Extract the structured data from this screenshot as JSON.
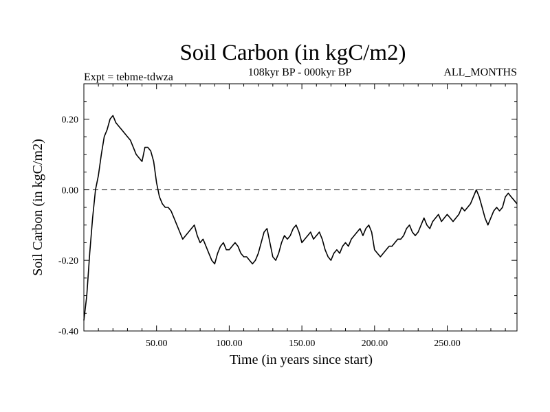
{
  "chart_data": {
    "type": "line",
    "title": "Soil Carbon (in kgC/m2)",
    "experiment_label": "Expt = tebme-tdwza",
    "period_label": "108kyr BP - 000kyr BP",
    "season_label": "ALL_MONTHS",
    "xlabel": "Time (in years since start)",
    "ylabel": "Soil Carbon (in kgC/m2)",
    "xlim": [
      0,
      298
    ],
    "ylim": [
      -0.4,
      0.3
    ],
    "x_ticks": [
      50,
      100,
      150,
      200,
      250
    ],
    "x_tick_labels": [
      "50.00",
      "100.00",
      "150.00",
      "200.00",
      "250.00"
    ],
    "y_ticks": [
      0.2,
      0.0,
      -0.2,
      -0.4
    ],
    "y_tick_labels": [
      "0.20",
      "0.00",
      "-0.20",
      "-0.40"
    ],
    "reference_line": 0.0,
    "series": [
      {
        "name": "Soil Carbon",
        "x": [
          0,
          2,
          4,
          6,
          8,
          10,
          12,
          14,
          16,
          18,
          20,
          22,
          24,
          26,
          28,
          30,
          32,
          34,
          36,
          38,
          40,
          42,
          44,
          46,
          48,
          50,
          52,
          54,
          56,
          58,
          60,
          62,
          64,
          66,
          68,
          70,
          72,
          74,
          76,
          78,
          80,
          82,
          84,
          86,
          88,
          90,
          92,
          94,
          96,
          98,
          100,
          102,
          104,
          106,
          108,
          110,
          112,
          114,
          116,
          118,
          120,
          122,
          124,
          126,
          128,
          130,
          132,
          134,
          136,
          138,
          140,
          142,
          144,
          146,
          148,
          150,
          152,
          154,
          156,
          158,
          160,
          162,
          164,
          166,
          168,
          170,
          172,
          174,
          176,
          178,
          180,
          182,
          184,
          186,
          188,
          190,
          192,
          194,
          196,
          198,
          200,
          202,
          204,
          206,
          208,
          210,
          212,
          214,
          216,
          218,
          220,
          222,
          224,
          226,
          228,
          230,
          232,
          234,
          236,
          238,
          240,
          242,
          244,
          246,
          248,
          250,
          252,
          254,
          256,
          258,
          260,
          262,
          264,
          266,
          268,
          270,
          272,
          274,
          276,
          278,
          280,
          282,
          284,
          286,
          288,
          290,
          292,
          294,
          296,
          298
        ],
        "values": [
          -0.37,
          -0.3,
          -0.18,
          -0.08,
          0.0,
          0.04,
          0.1,
          0.15,
          0.17,
          0.2,
          0.21,
          0.19,
          0.18,
          0.17,
          0.16,
          0.15,
          0.14,
          0.12,
          0.1,
          0.09,
          0.08,
          0.12,
          0.12,
          0.11,
          0.08,
          0.02,
          -0.02,
          -0.04,
          -0.05,
          -0.05,
          -0.06,
          -0.08,
          -0.1,
          -0.12,
          -0.14,
          -0.13,
          -0.12,
          -0.11,
          -0.1,
          -0.13,
          -0.15,
          -0.14,
          -0.16,
          -0.18,
          -0.2,
          -0.21,
          -0.18,
          -0.16,
          -0.15,
          -0.17,
          -0.17,
          -0.16,
          -0.15,
          -0.16,
          -0.18,
          -0.19,
          -0.19,
          -0.2,
          -0.21,
          -0.2,
          -0.18,
          -0.15,
          -0.12,
          -0.11,
          -0.15,
          -0.19,
          -0.2,
          -0.18,
          -0.15,
          -0.13,
          -0.14,
          -0.13,
          -0.11,
          -0.1,
          -0.12,
          -0.15,
          -0.14,
          -0.13,
          -0.12,
          -0.14,
          -0.13,
          -0.12,
          -0.14,
          -0.17,
          -0.19,
          -0.2,
          -0.18,
          -0.17,
          -0.18,
          -0.16,
          -0.15,
          -0.16,
          -0.14,
          -0.13,
          -0.12,
          -0.11,
          -0.13,
          -0.11,
          -0.1,
          -0.12,
          -0.17,
          -0.18,
          -0.19,
          -0.18,
          -0.17,
          -0.16,
          -0.16,
          -0.15,
          -0.14,
          -0.14,
          -0.13,
          -0.11,
          -0.1,
          -0.12,
          -0.13,
          -0.12,
          -0.1,
          -0.08,
          -0.1,
          -0.11,
          -0.09,
          -0.08,
          -0.07,
          -0.09,
          -0.08,
          -0.07,
          -0.08,
          -0.09,
          -0.08,
          -0.07,
          -0.05,
          -0.06,
          -0.05,
          -0.04,
          -0.02,
          0.0,
          -0.02,
          -0.05,
          -0.08,
          -0.1,
          -0.08,
          -0.06,
          -0.05,
          -0.06,
          -0.05,
          -0.02,
          -0.01,
          -0.02,
          -0.03,
          -0.04
        ]
      }
    ]
  }
}
